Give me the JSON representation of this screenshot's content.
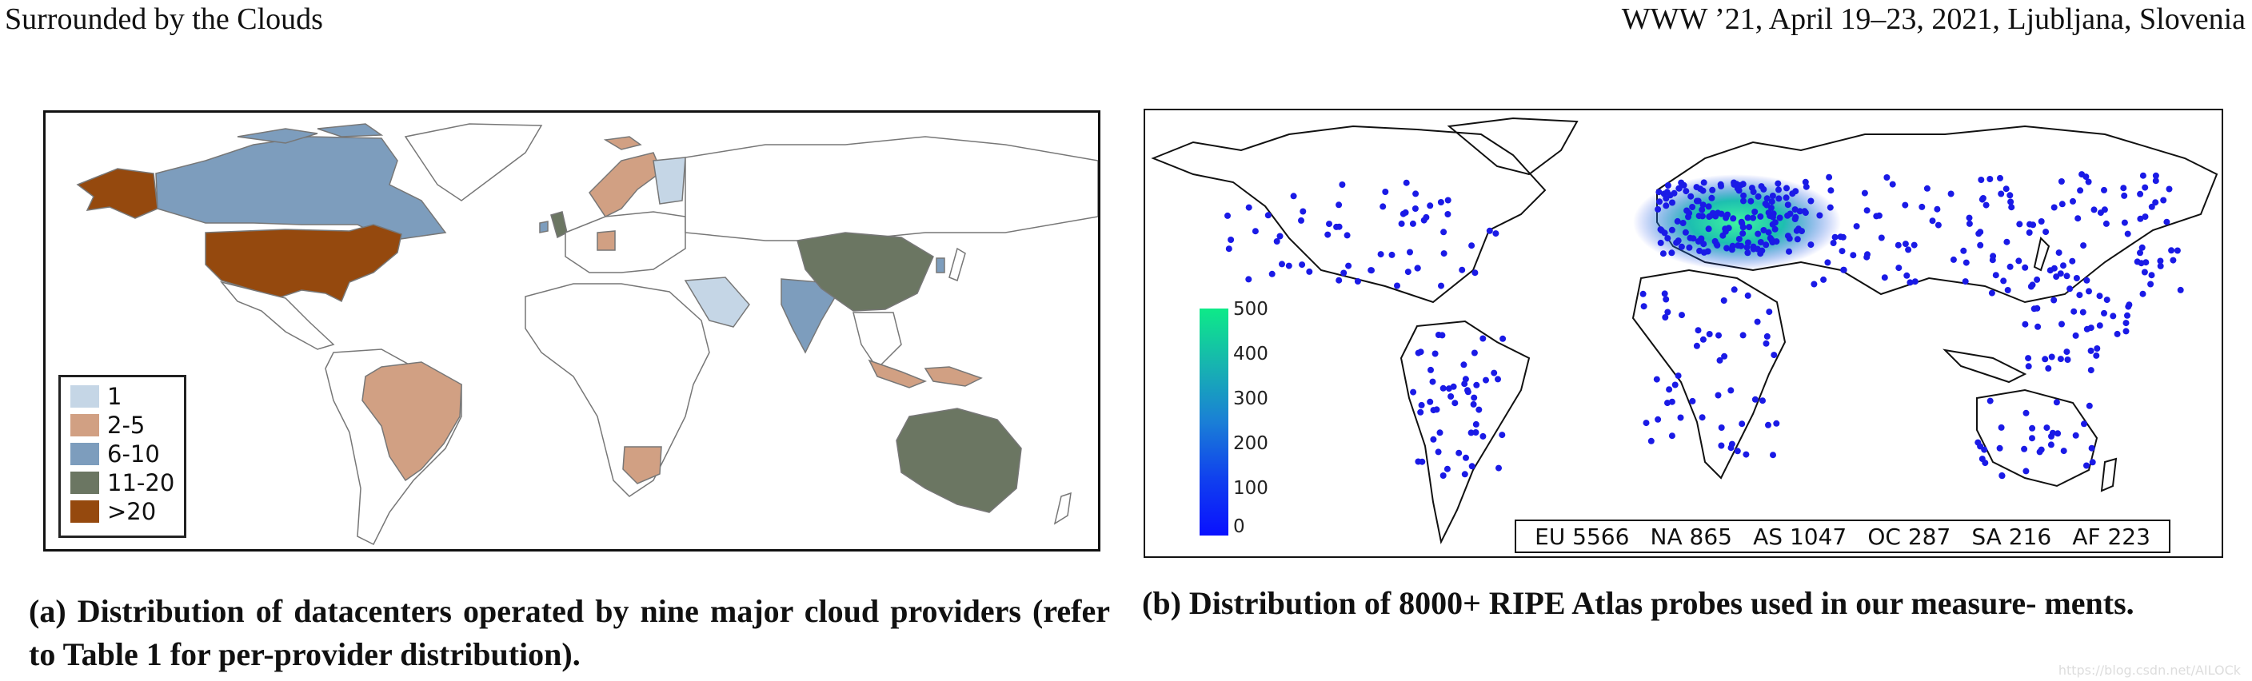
{
  "header": {
    "left": "Surrounded by the Clouds",
    "right": "WWW ’21, April 19–23, 2021, Ljubljana, Slovenia"
  },
  "figure_a": {
    "caption": "(a) Distribution of datacenters operated by nine major cloud providers (refer to Table 1 for per-provider distribution).",
    "legend": [
      {
        "label": "1",
        "color": "#c5d6e6"
      },
      {
        "label": "2-5",
        "color": "#d1a083"
      },
      {
        "label": "6-10",
        "color": "#7d9dbd"
      },
      {
        "label": "11-20",
        "color": "#6b7662"
      },
      {
        "label": ">20",
        "color": "#95490e"
      }
    ]
  },
  "figure_b": {
    "caption": "(b) Distribution of 8000+ RIPE Atlas probes used in our measure- ments.",
    "colorbar_ticks": [
      "500",
      "400",
      "300",
      "200",
      "100",
      "0"
    ],
    "continent_counts": [
      {
        "label": "EU 5566"
      },
      {
        "label": "NA 865"
      },
      {
        "label": "AS 1047"
      },
      {
        "label": "OC 287"
      },
      {
        "label": "SA 216"
      },
      {
        "label": "AF 223"
      }
    ],
    "probe_color": "#1a1ae6"
  },
  "watermark": "https://blog.csdn.net/AILOCk"
}
